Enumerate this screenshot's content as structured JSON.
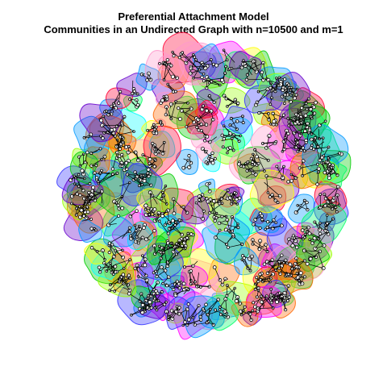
{
  "figure": {
    "title_line_1": "Preferential Attachment Model",
    "title_line_2": "Communities in an Undirected Graph with n=10500 and m=1"
  },
  "graph": {
    "model": "preferential-attachment",
    "directed": false,
    "n": 10500,
    "m": 1,
    "hull_colors": [
      "#ff00ff",
      "#00ff66",
      "#3333ff",
      "#ff6600",
      "#00ffff",
      "#ffff00",
      "#ff0033",
      "#00cc00",
      "#6600cc",
      "#ff99cc",
      "#0099ff",
      "#99ff00"
    ],
    "hull_alpha": 0.35,
    "hull_border_alpha": 0.85,
    "node_fill": "#ffffff",
    "node_stroke": "#000000",
    "edge_color": "#000000"
  }
}
